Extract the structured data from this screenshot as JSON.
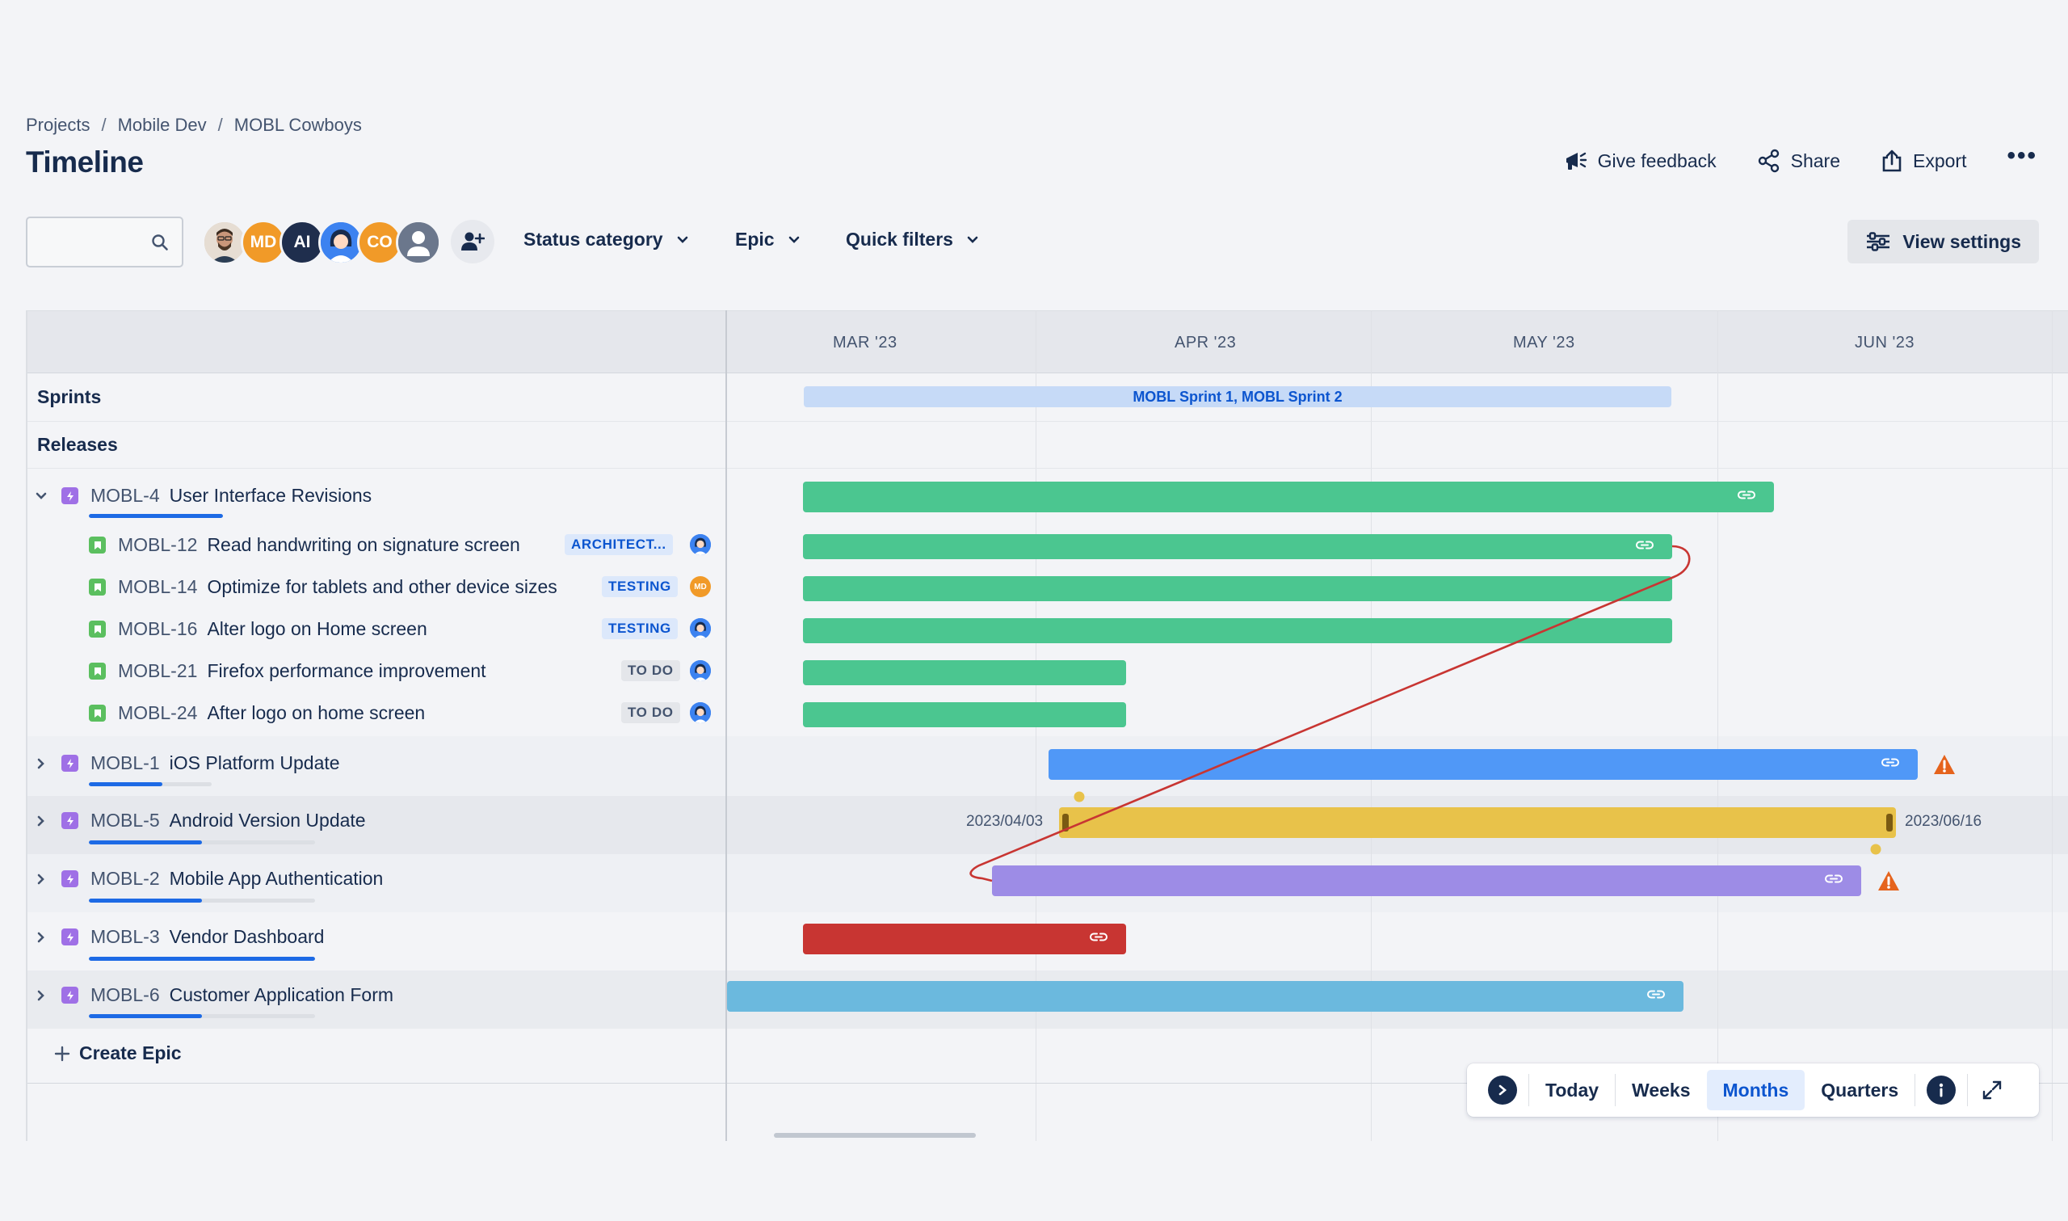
{
  "breadcrumb": [
    "Projects",
    "Mobile Dev",
    "MOBL Cowboys"
  ],
  "breadcrumb_separator": "/",
  "page_title": "Timeline",
  "actions": {
    "feedback": "Give feedback",
    "share": "Share",
    "export": "Export",
    "more": "•••"
  },
  "search": {
    "placeholder": "",
    "icon": "search-icon"
  },
  "avatars": [
    {
      "initials": "",
      "color": "#8a6d5a",
      "kind": "photo"
    },
    {
      "initials": "MD",
      "color": "#f19a28"
    },
    {
      "initials": "AI",
      "color": "#1f2e4d"
    },
    {
      "initials": "",
      "color": "#3c82f0",
      "kind": "illustration"
    },
    {
      "initials": "CO",
      "color": "#f19a28"
    },
    {
      "initials": "",
      "color": "#6b778c",
      "kind": "default"
    }
  ],
  "filters": {
    "status_category": "Status category",
    "epic": "Epic",
    "quick_filters": "Quick filters"
  },
  "view_settings": "View settings",
  "months": [
    "MAR '23",
    "APR '23",
    "MAY '23",
    "JUN '23"
  ],
  "sprints_label": "Sprints",
  "releases_label": "Releases",
  "sprint_bar": "MOBL Sprint 1, MOBL Sprint 2",
  "epics": [
    {
      "key": "MOBL-4",
      "title": "User Interface Revisions",
      "expanded": true,
      "progress": 0.6,
      "color": "#4bc690",
      "children": [
        {
          "key": "MOBL-12",
          "title": "Read handwriting on signature screen",
          "status": "ARCHITECT...",
          "status_style": "blue",
          "assignee": "illustration"
        },
        {
          "key": "MOBL-14",
          "title": "Optimize for tablets and other device sizes",
          "status": "TESTING",
          "status_style": "blue",
          "assignee": "MD"
        },
        {
          "key": "MOBL-16",
          "title": "Alter logo on Home screen",
          "status": "TESTING",
          "status_style": "blue",
          "assignee": "illustration"
        },
        {
          "key": "MOBL-21",
          "title": "Firefox performance improvement",
          "status": "TO DO",
          "status_style": "grey",
          "assignee": "illustration"
        },
        {
          "key": "MOBL-24",
          "title": "After logo on home screen",
          "status": "TO DO",
          "status_style": "grey",
          "assignee": "illustration"
        }
      ]
    },
    {
      "key": "MOBL-1",
      "title": "iOS Platform Update",
      "expanded": false,
      "progress": 0.55,
      "color": "#5098f7",
      "warning": true
    },
    {
      "key": "MOBL-5",
      "title": "Android Version Update",
      "expanded": false,
      "progress": 0.5,
      "color": "#e8c24a",
      "start_date": "2023/04/03",
      "end_date": "2023/06/16"
    },
    {
      "key": "MOBL-2",
      "title": "Mobile App Authentication",
      "expanded": false,
      "progress": 0.5,
      "color": "#9d8ce6",
      "warning": true
    },
    {
      "key": "MOBL-3",
      "title": "Vendor Dashboard",
      "expanded": false,
      "progress": 1.0,
      "color": "#c83532"
    },
    {
      "key": "MOBL-6",
      "title": "Customer Application Form",
      "expanded": false,
      "progress": 0.5,
      "color": "#6bb9de"
    }
  ],
  "create_epic": "Create Epic",
  "controls": {
    "today": "Today",
    "weeks": "Weeks",
    "months": "Months",
    "quarters": "Quarters",
    "active": "Months"
  },
  "colors": {
    "accent": "#0c55cf",
    "dependency_line": "#c83532",
    "warning": "#e5631c"
  }
}
